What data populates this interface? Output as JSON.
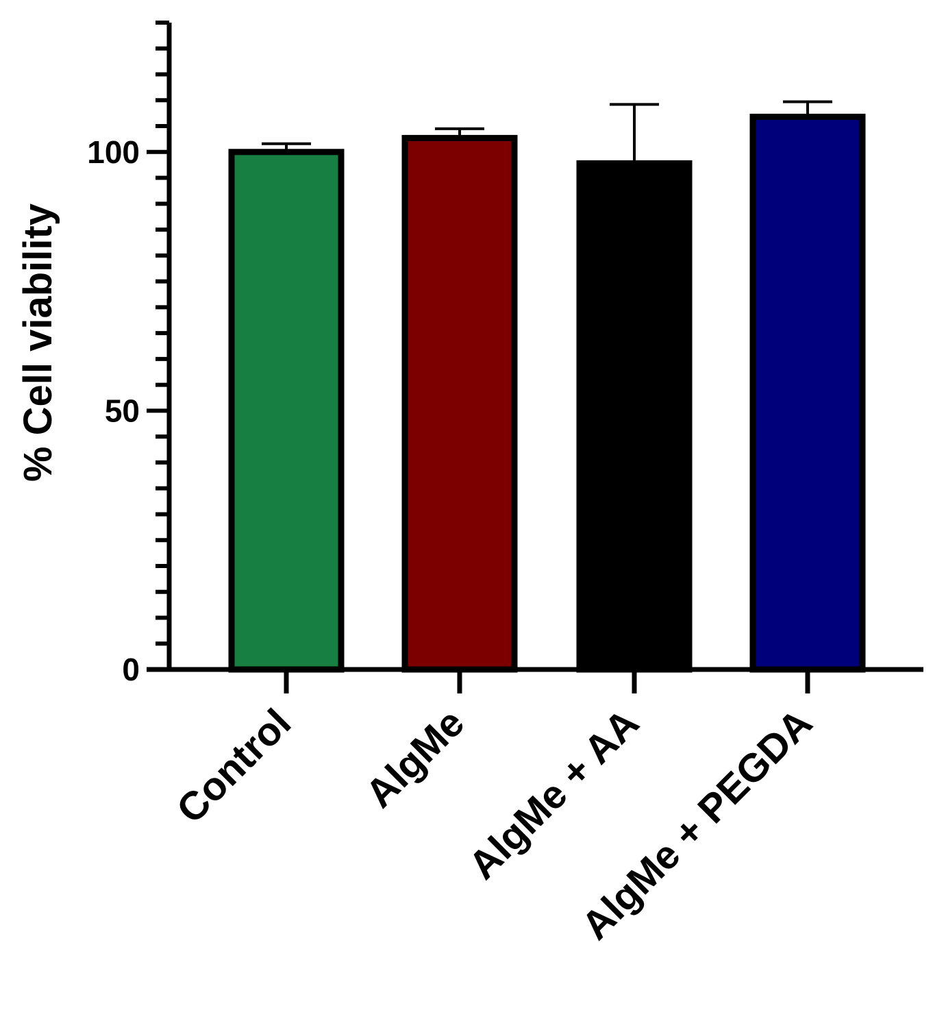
{
  "chart_data": {
    "type": "bar",
    "title": "",
    "xlabel": "",
    "ylabel": "% Cell viability",
    "ylim": [
      0,
      125
    ],
    "yticks": [
      0,
      50,
      100
    ],
    "yticks_labels": [
      "0",
      "50",
      "100"
    ],
    "minor_tick_step": 5,
    "grid": false,
    "categories": [
      "Control",
      "AlgMe",
      "AlgMe + AA",
      "AlgMe + PEGDA"
    ],
    "values": [
      100,
      102.7,
      97.8,
      106.8
    ],
    "error_upper": [
      1.6,
      1.8,
      11.4,
      2.9
    ],
    "colors": [
      "#177f41",
      "#7d0000",
      "#000000",
      "#00007b"
    ],
    "edge_color": "#000000"
  }
}
